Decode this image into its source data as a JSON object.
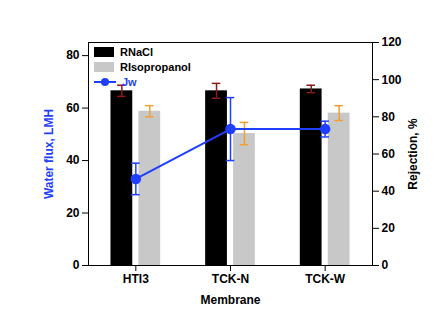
{
  "chart_data": {
    "type": "bar",
    "categories": [
      "HTI3",
      "TCK-N",
      "TCK-W"
    ],
    "xlabel": "Membrane",
    "ylabel": "Water flux, LMH",
    "y2label": "Rejection, %",
    "ylim": [
      0,
      85
    ],
    "yticks": [
      0,
      20,
      40,
      60,
      80
    ],
    "y2lim": [
      0,
      120
    ],
    "y2ticks": [
      0,
      20,
      40,
      60,
      80,
      100,
      120
    ],
    "legend": "upper left",
    "series": [
      {
        "name": "RNaCl",
        "type": "bar",
        "axis": "y2",
        "color": "#000000",
        "values": [
          94,
          94,
          95
        ],
        "errors": [
          3,
          4,
          2
        ]
      },
      {
        "name": "RIsopropanol",
        "type": "bar",
        "axis": "y2",
        "color": "#c8c8c8",
        "values": [
          83,
          71,
          82
        ],
        "errors": [
          3,
          6,
          4
        ]
      },
      {
        "name": "Jw",
        "type": "line",
        "color": "#1f3fff",
        "marker": "circle",
        "values": [
          33,
          52,
          52
        ],
        "errors": [
          6,
          12,
          3
        ]
      }
    ]
  }
}
